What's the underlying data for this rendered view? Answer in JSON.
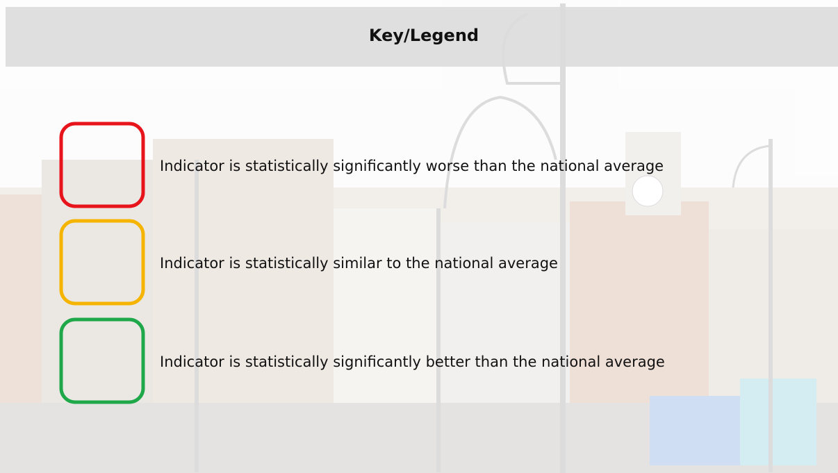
{
  "header": {
    "title": "Key/Legend"
  },
  "legend": {
    "items": [
      {
        "color": "#e8141b",
        "label": "Indicator is statistically significantly worse than the national average"
      },
      {
        "color": "#f5b400",
        "label": "Indicator is statistically similar to the national average"
      },
      {
        "color": "#1fa84a",
        "label": "Indicator is statistically significantly better than the national average"
      }
    ]
  }
}
